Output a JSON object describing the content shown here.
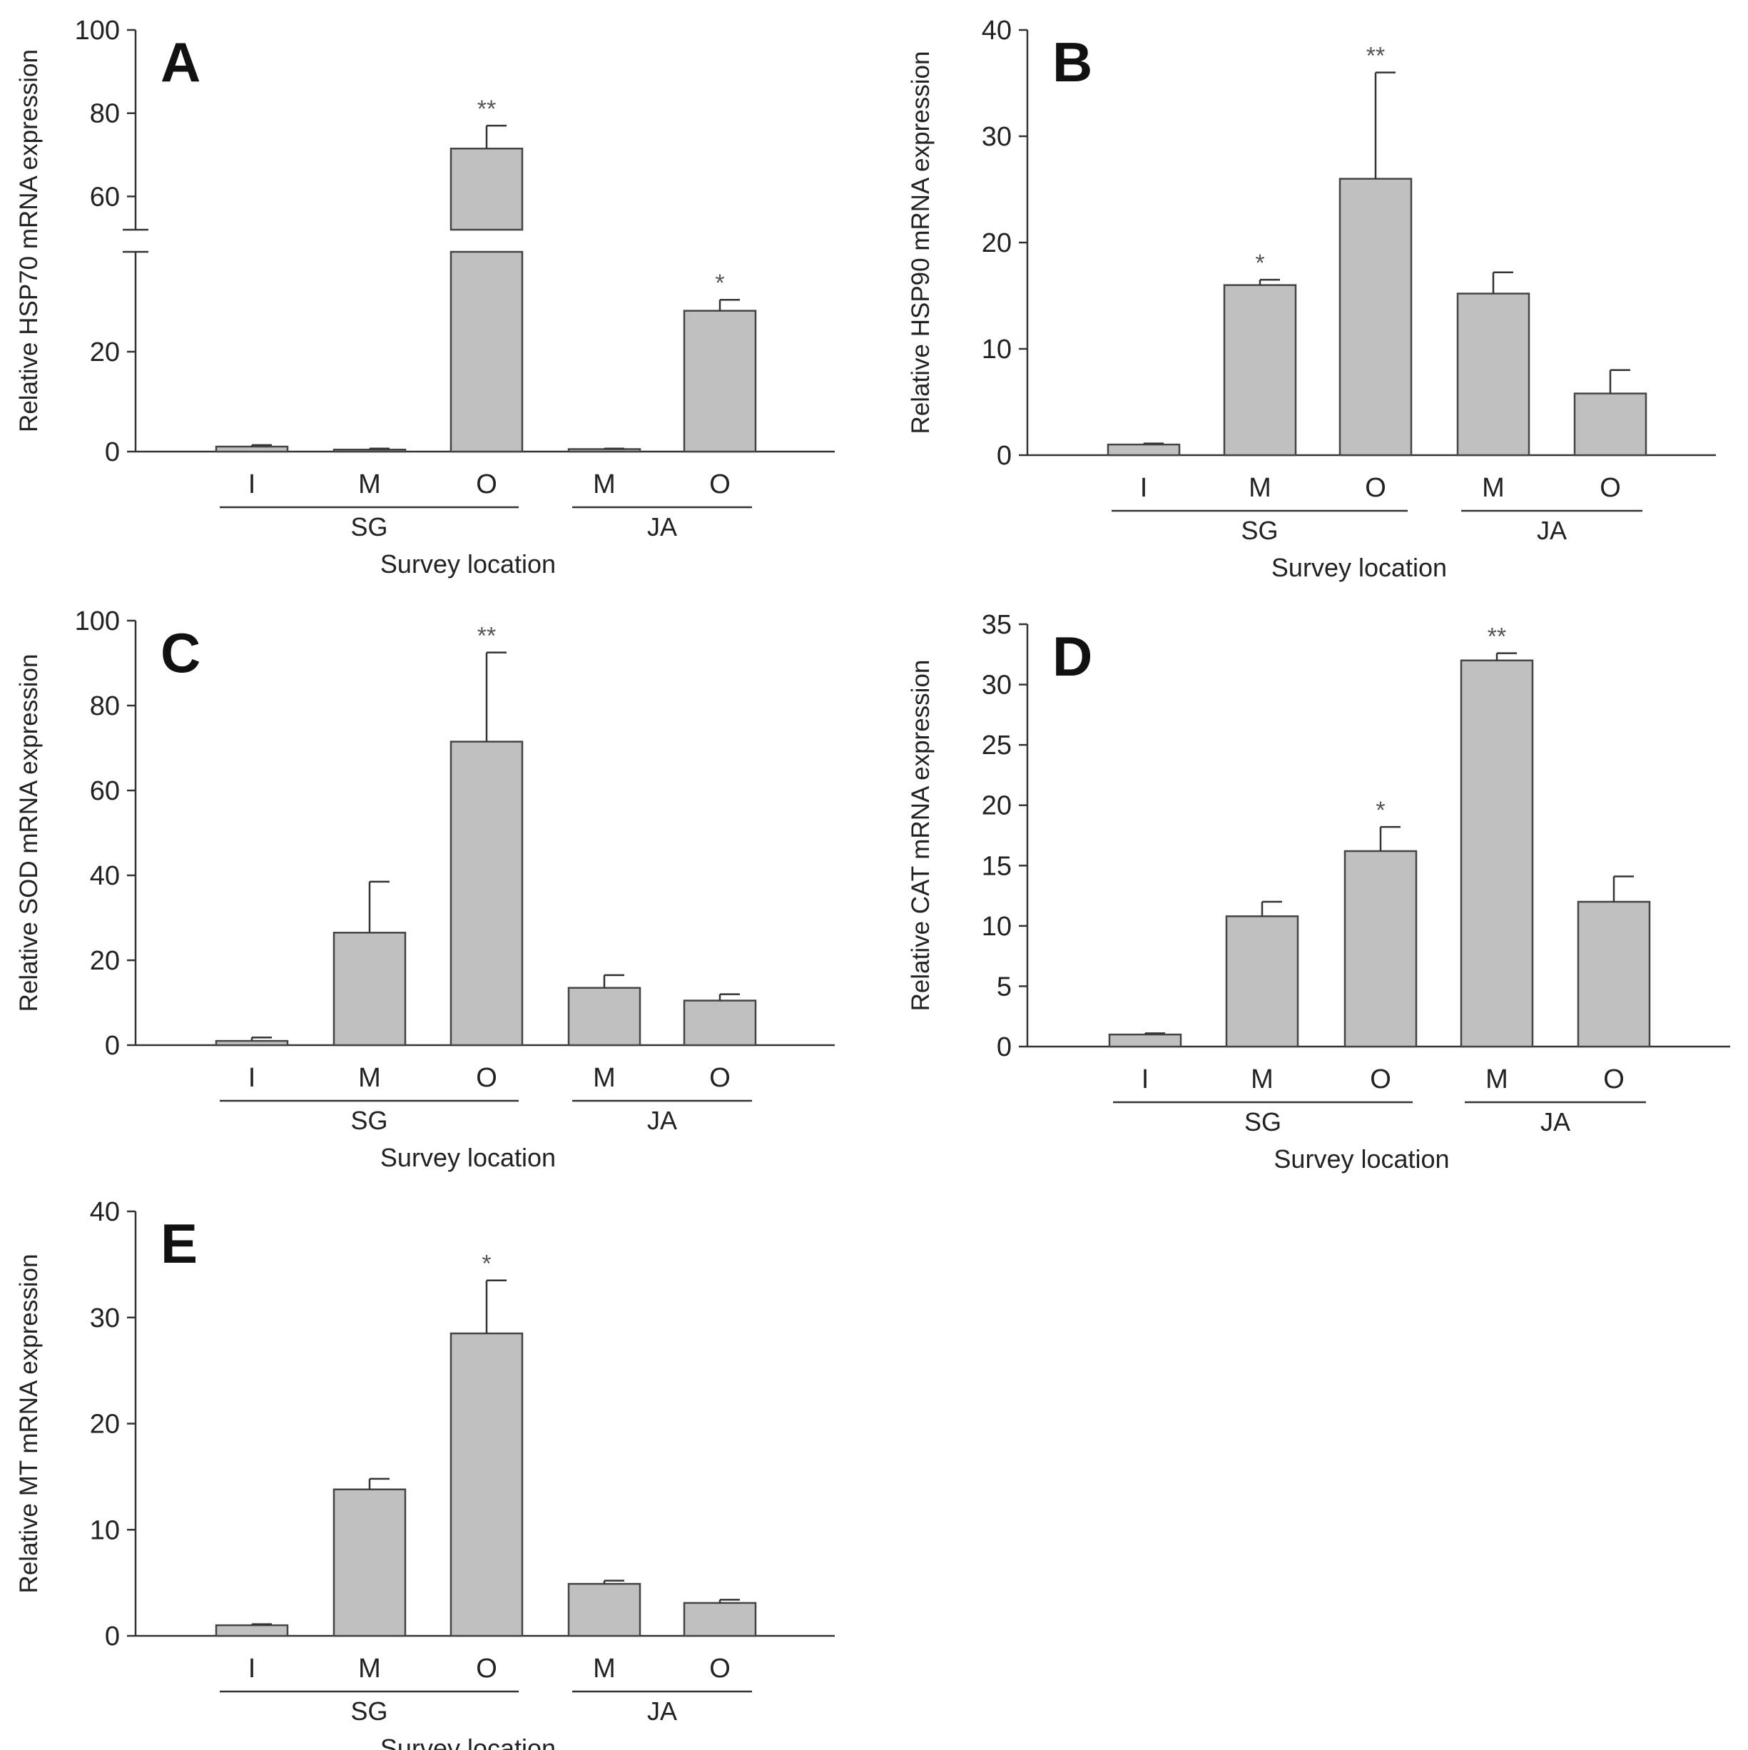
{
  "colors": {
    "bar_fill": "#c0c0c0",
    "bar_stroke": "#444444",
    "axis": "#333333",
    "significance": "#555555"
  },
  "chart_data": [
    {
      "panel": "A",
      "type": "bar",
      "ylabel": "Relative HSP70 mRNA expression",
      "xlabel": "Survey location",
      "categories": [
        "I",
        "M",
        "O",
        "M",
        "O"
      ],
      "groups": [
        {
          "label": "SG",
          "members": [
            0,
            1,
            2
          ]
        },
        {
          "label": "JA",
          "members": [
            3,
            4
          ]
        }
      ],
      "values": [
        1.0,
        0.4,
        71.5,
        0.5,
        28.2
      ],
      "errors": [
        0.3,
        0.2,
        5.5,
        0.1,
        2.2
      ],
      "significance": [
        "",
        "",
        "**",
        "",
        "*"
      ],
      "yticks": [
        0,
        20,
        60,
        80,
        100
      ],
      "ylim": [
        0,
        100
      ],
      "axis_break": [
        40,
        52
      ]
    },
    {
      "panel": "B",
      "type": "bar",
      "ylabel": "Relative HSP90 mRNA expression",
      "xlabel": "Survey location",
      "categories": [
        "I",
        "M",
        "O",
        "M",
        "O"
      ],
      "groups": [
        {
          "label": "SG",
          "members": [
            0,
            1,
            2
          ]
        },
        {
          "label": "JA",
          "members": [
            3,
            4
          ]
        }
      ],
      "values": [
        1.0,
        16.0,
        26.0,
        15.2,
        5.8
      ],
      "errors": [
        0.1,
        0.5,
        10.0,
        2.0,
        2.2
      ],
      "significance": [
        "",
        "*",
        "**",
        "",
        ""
      ],
      "yticks": [
        0,
        10,
        20,
        30,
        40
      ],
      "ylim": [
        0,
        40
      ]
    },
    {
      "panel": "C",
      "type": "bar",
      "ylabel": "Relative SOD mRNA expression",
      "xlabel": "Survey location",
      "categories": [
        "I",
        "M",
        "O",
        "M",
        "O"
      ],
      "groups": [
        {
          "label": "SG",
          "members": [
            0,
            1,
            2
          ]
        },
        {
          "label": "JA",
          "members": [
            3,
            4
          ]
        }
      ],
      "values": [
        1.0,
        26.5,
        71.5,
        13.5,
        10.5
      ],
      "errors": [
        0.8,
        12.0,
        21.0,
        3.0,
        1.5
      ],
      "significance": [
        "",
        "",
        "**",
        "",
        ""
      ],
      "yticks": [
        0,
        20,
        40,
        60,
        80,
        100
      ],
      "ylim": [
        0,
        100
      ]
    },
    {
      "panel": "D",
      "type": "bar",
      "ylabel": "Relative CAT mRNA expression",
      "xlabel": "Survey location",
      "categories": [
        "I",
        "M",
        "O",
        "M",
        "O"
      ],
      "groups": [
        {
          "label": "SG",
          "members": [
            0,
            1,
            2
          ]
        },
        {
          "label": "JA",
          "members": [
            3,
            4
          ]
        }
      ],
      "values": [
        1.0,
        10.8,
        16.2,
        32.0,
        12.0
      ],
      "errors": [
        0.1,
        1.2,
        2.0,
        0.6,
        2.1
      ],
      "significance": [
        "",
        "",
        "*",
        "**",
        ""
      ],
      "yticks": [
        0,
        5,
        10,
        15,
        20,
        25,
        30,
        35
      ],
      "ylim": [
        0,
        35
      ]
    },
    {
      "panel": "E",
      "type": "bar",
      "ylabel": "Relative MT mRNA expression",
      "xlabel": "Survey location",
      "categories": [
        "I",
        "M",
        "O",
        "M",
        "O"
      ],
      "groups": [
        {
          "label": "SG",
          "members": [
            0,
            1,
            2
          ]
        },
        {
          "label": "JA",
          "members": [
            3,
            4
          ]
        }
      ],
      "values": [
        1.0,
        13.8,
        28.5,
        4.9,
        3.1
      ],
      "errors": [
        0.1,
        1.0,
        5.0,
        0.3,
        0.3
      ],
      "significance": [
        "",
        "",
        "*",
        "",
        ""
      ],
      "yticks": [
        0,
        10,
        20,
        30,
        40
      ],
      "ylim": [
        0,
        40
      ]
    }
  ]
}
